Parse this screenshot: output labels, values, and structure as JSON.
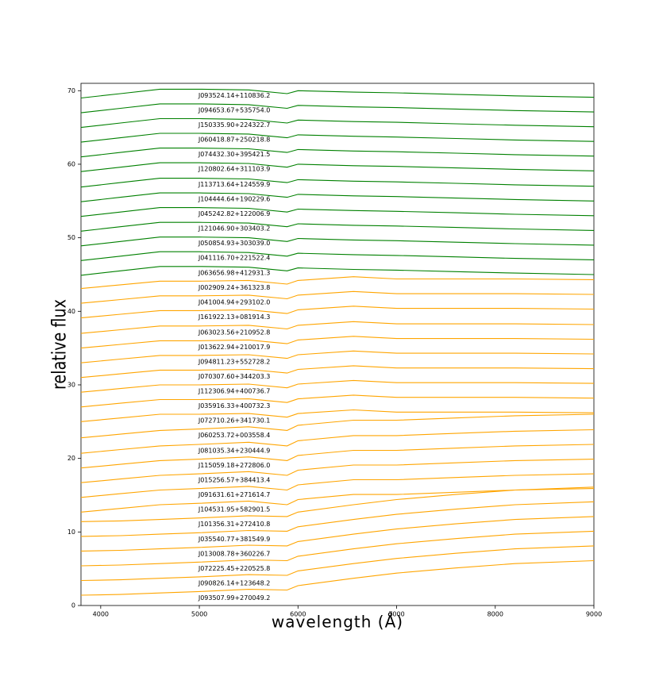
{
  "chart_data": {
    "type": "line",
    "xlabel": "wavelength (Å)",
    "ylabel": "relative flux",
    "x": [
      3800,
      4200,
      4600,
      5000,
      5500,
      5890,
      6000,
      6563,
      7000,
      7600,
      8200,
      9000
    ],
    "xlim": [
      3800,
      9000
    ],
    "xticks": [
      4000,
      5000,
      6000,
      7000,
      8000,
      9000
    ],
    "ylim": [
      0,
      71
    ],
    "yticks": [
      0,
      10,
      20,
      30,
      40,
      50,
      60,
      70
    ],
    "series": [
      {
        "name": "J093524.14+110836.2",
        "color": "#008000",
        "values": [
          69.0,
          69.6,
          70.2,
          70.2,
          70.1,
          69.6,
          70.0,
          69.8,
          69.7,
          69.5,
          69.3,
          69.1
        ]
      },
      {
        "name": "J094653.67+535754.0",
        "color": "#008000",
        "values": [
          67.0,
          67.6,
          68.2,
          68.2,
          68.1,
          67.6,
          68.0,
          67.8,
          67.7,
          67.5,
          67.3,
          67.1
        ]
      },
      {
        "name": "J150335.90+224322.7",
        "color": "#008000",
        "values": [
          65.0,
          65.6,
          66.2,
          66.2,
          66.1,
          65.6,
          66.0,
          65.8,
          65.7,
          65.5,
          65.3,
          65.1
        ]
      },
      {
        "name": "J060418.87+250218.8",
        "color": "#008000",
        "values": [
          63.0,
          63.6,
          64.2,
          64.2,
          64.1,
          63.6,
          64.0,
          63.8,
          63.7,
          63.5,
          63.3,
          63.1
        ]
      },
      {
        "name": "J074432.30+395421.5",
        "color": "#008000",
        "values": [
          61.0,
          61.6,
          62.2,
          62.2,
          62.1,
          61.6,
          62.0,
          61.8,
          61.7,
          61.5,
          61.3,
          61.1
        ]
      },
      {
        "name": "J120802.64+311103.9",
        "color": "#008000",
        "values": [
          59.0,
          59.6,
          60.2,
          60.2,
          60.1,
          59.6,
          60.0,
          59.8,
          59.7,
          59.5,
          59.3,
          59.1
        ]
      },
      {
        "name": "J113713.64+124559.9",
        "color": "#008000",
        "values": [
          56.9,
          57.5,
          58.1,
          58.1,
          58.0,
          57.5,
          57.9,
          57.7,
          57.6,
          57.4,
          57.2,
          57.0
        ]
      },
      {
        "name": "J104444.64+190229.6",
        "color": "#008000",
        "values": [
          54.9,
          55.5,
          56.1,
          56.1,
          56.0,
          55.5,
          55.9,
          55.7,
          55.6,
          55.4,
          55.2,
          55.0
        ]
      },
      {
        "name": "J045242.82+122006.9",
        "color": "#008000",
        "values": [
          52.9,
          53.5,
          54.1,
          54.1,
          54.0,
          53.5,
          53.9,
          53.7,
          53.6,
          53.4,
          53.2,
          53.0
        ]
      },
      {
        "name": "J121046.90+303403.2",
        "color": "#008000",
        "values": [
          50.9,
          51.5,
          52.1,
          52.1,
          52.0,
          51.5,
          51.9,
          51.7,
          51.6,
          51.4,
          51.2,
          51.0
        ]
      },
      {
        "name": "J050854.93+303039.0",
        "color": "#008000",
        "values": [
          48.9,
          49.5,
          50.1,
          50.1,
          50.0,
          49.5,
          49.9,
          49.7,
          49.6,
          49.4,
          49.2,
          49.0
        ]
      },
      {
        "name": "J041116.70+221522.4",
        "color": "#008000",
        "values": [
          46.9,
          47.5,
          48.1,
          48.1,
          48.0,
          47.5,
          47.9,
          47.7,
          47.6,
          47.4,
          47.2,
          47.0
        ]
      },
      {
        "name": "J063656.98+412931.3",
        "color": "#008000",
        "values": [
          44.9,
          45.5,
          46.1,
          46.1,
          46.0,
          45.5,
          45.9,
          45.7,
          45.6,
          45.4,
          45.2,
          45.0
        ]
      },
      {
        "name": "J002909.24+361323.8",
        "color": "#ffa500",
        "values": [
          43.1,
          43.6,
          44.1,
          44.1,
          44.2,
          43.7,
          44.2,
          44.7,
          44.4,
          44.4,
          44.4,
          44.3
        ]
      },
      {
        "name": "J041004.94+293102.0",
        "color": "#ffa500",
        "values": [
          41.1,
          41.6,
          42.1,
          42.1,
          42.2,
          41.7,
          42.2,
          42.7,
          42.4,
          42.4,
          42.4,
          42.3
        ]
      },
      {
        "name": "J161922.13+081914.3",
        "color": "#ffa500",
        "values": [
          39.1,
          39.6,
          40.1,
          40.1,
          40.2,
          39.7,
          40.2,
          40.7,
          40.4,
          40.4,
          40.4,
          40.3
        ]
      },
      {
        "name": "J063023.56+210952.8",
        "color": "#ffa500",
        "values": [
          37.0,
          37.5,
          38.0,
          38.0,
          38.1,
          37.6,
          38.1,
          38.6,
          38.3,
          38.3,
          38.3,
          38.2
        ]
      },
      {
        "name": "J013622.94+210017.9",
        "color": "#ffa500",
        "values": [
          35.0,
          35.5,
          36.0,
          36.0,
          36.1,
          35.6,
          36.1,
          36.6,
          36.3,
          36.3,
          36.3,
          36.2
        ]
      },
      {
        "name": "J094811.23+552728.2",
        "color": "#ffa500",
        "values": [
          33.0,
          33.5,
          34.0,
          34.0,
          34.1,
          33.6,
          34.1,
          34.6,
          34.3,
          34.3,
          34.3,
          34.2
        ]
      },
      {
        "name": "J070307.60+344203.3",
        "color": "#ffa500",
        "values": [
          31.0,
          31.5,
          32.0,
          32.0,
          32.1,
          31.6,
          32.1,
          32.6,
          32.3,
          32.3,
          32.3,
          32.2
        ]
      },
      {
        "name": "J112306.94+400736.7",
        "color": "#ffa500",
        "values": [
          29.0,
          29.5,
          30.0,
          30.0,
          30.1,
          29.6,
          30.1,
          30.6,
          30.3,
          30.3,
          30.3,
          30.2
        ]
      },
      {
        "name": "J035916.33+400732.3",
        "color": "#ffa500",
        "values": [
          27.0,
          27.5,
          28.0,
          28.0,
          28.1,
          27.6,
          28.1,
          28.6,
          28.3,
          28.3,
          28.3,
          28.2
        ]
      },
      {
        "name": "J072710.26+341730.1",
        "color": "#ffa500",
        "values": [
          25.0,
          25.5,
          26.0,
          26.0,
          26.1,
          25.6,
          26.1,
          26.6,
          26.3,
          26.3,
          26.3,
          26.2
        ]
      },
      {
        "name": "J060253.72+003558.4",
        "color": "#ffa500",
        "values": [
          22.8,
          23.3,
          23.8,
          24.0,
          24.3,
          23.8,
          24.5,
          25.2,
          25.2,
          25.5,
          25.8,
          26.0
        ]
      },
      {
        "name": "J081035.34+230444.9",
        "color": "#ffa500",
        "values": [
          20.7,
          21.2,
          21.7,
          21.9,
          22.2,
          21.7,
          22.4,
          23.1,
          23.1,
          23.4,
          23.7,
          23.9
        ]
      },
      {
        "name": "J115059.18+272806.0",
        "color": "#ffa500",
        "values": [
          18.7,
          19.2,
          19.7,
          19.9,
          20.2,
          19.7,
          20.4,
          21.1,
          21.1,
          21.4,
          21.7,
          21.9
        ]
      },
      {
        "name": "J015256.57+384413.4",
        "color": "#ffa500",
        "values": [
          16.7,
          17.2,
          17.7,
          17.9,
          18.2,
          17.7,
          18.4,
          19.1,
          19.1,
          19.4,
          19.7,
          19.9
        ]
      },
      {
        "name": "J091631.61+271614.7",
        "color": "#ffa500",
        "values": [
          14.7,
          15.2,
          15.7,
          15.9,
          16.2,
          15.7,
          16.4,
          17.1,
          17.1,
          17.4,
          17.7,
          17.9
        ]
      },
      {
        "name": "J104531.95+582901.5",
        "color": "#ffa500",
        "values": [
          12.7,
          13.2,
          13.7,
          13.9,
          14.2,
          13.7,
          14.4,
          15.1,
          15.1,
          15.4,
          15.7,
          15.9
        ]
      },
      {
        "name": "J101356.31+272410.8",
        "color": "#ffa500",
        "values": [
          11.4,
          11.5,
          11.7,
          11.9,
          12.2,
          12.1,
          12.7,
          13.7,
          14.4,
          15.1,
          15.7,
          16.1
        ]
      },
      {
        "name": "J035540.77+381549.9",
        "color": "#ffa500",
        "values": [
          9.4,
          9.5,
          9.7,
          9.9,
          10.2,
          10.1,
          10.7,
          11.7,
          12.4,
          13.1,
          13.7,
          14.1
        ]
      },
      {
        "name": "J013008.78+360226.7",
        "color": "#ffa500",
        "values": [
          7.4,
          7.5,
          7.7,
          7.9,
          8.2,
          8.1,
          8.7,
          9.7,
          10.4,
          11.1,
          11.7,
          12.1
        ]
      },
      {
        "name": "J072225.45+220525.8",
        "color": "#ffa500",
        "values": [
          5.4,
          5.5,
          5.7,
          5.9,
          6.2,
          6.1,
          6.7,
          7.7,
          8.4,
          9.1,
          9.7,
          10.1
        ]
      },
      {
        "name": "J090826.14+123648.2",
        "color": "#ffa500",
        "values": [
          3.4,
          3.5,
          3.7,
          3.9,
          4.2,
          4.1,
          4.7,
          5.7,
          6.4,
          7.1,
          7.7,
          8.1
        ]
      },
      {
        "name": "J093507.99+270049.2",
        "color": "#ffa500",
        "values": [
          1.4,
          1.5,
          1.7,
          1.9,
          2.2,
          2.1,
          2.7,
          3.7,
          4.4,
          5.1,
          5.7,
          6.1
        ]
      }
    ]
  }
}
